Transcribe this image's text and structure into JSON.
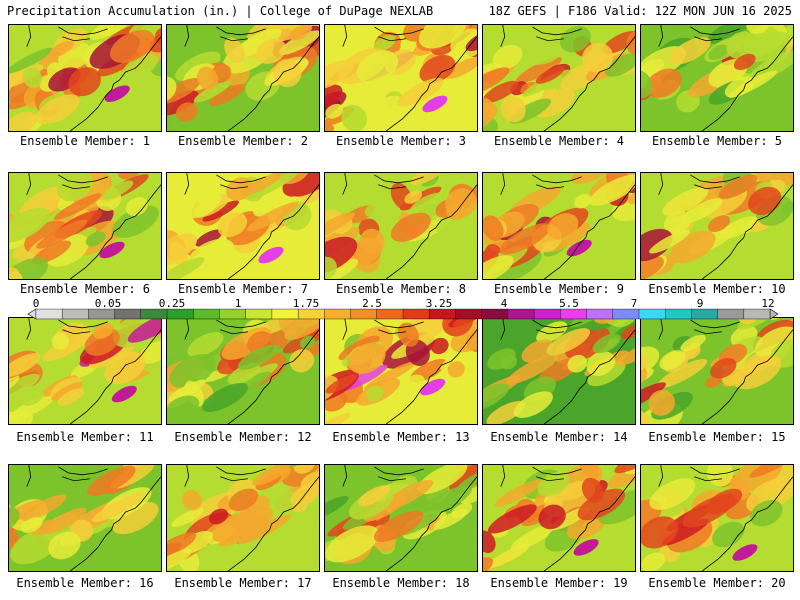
{
  "header": {
    "left": "Precipitation Accumulation (in.) | College of DuPage NEXLAB",
    "right": "18Z GEFS | F186 Valid: 12Z MON JUN 16 2025"
  },
  "members": [
    "Ensemble Member: 1",
    "Ensemble Member: 2",
    "Ensemble Member: 3",
    "Ensemble Member: 4",
    "Ensemble Member: 5",
    "Ensemble Member: 6",
    "Ensemble Member: 7",
    "Ensemble Member: 8",
    "Ensemble Member: 9",
    "Ensemble Member: 10",
    "Ensemble Member: 11",
    "Ensemble Member: 12",
    "Ensemble Member: 13",
    "Ensemble Member: 14",
    "Ensemble Member: 15",
    "Ensemble Member: 16",
    "Ensemble Member: 17",
    "Ensemble Member: 18",
    "Ensemble Member: 19",
    "Ensemble Member: 20"
  ],
  "panel_intensity": [
    0.62,
    0.48,
    0.78,
    0.52,
    0.36,
    0.6,
    0.72,
    0.5,
    0.66,
    0.55,
    0.63,
    0.46,
    0.74,
    0.3,
    0.38,
    0.42,
    0.52,
    0.4,
    0.58,
    0.64
  ],
  "scale": {
    "tick_labels": [
      "0",
      "0.05",
      "0.25",
      "1",
      "1.75",
      "2.5",
      "3.25",
      "4",
      "5.5",
      "7",
      "9",
      "12"
    ],
    "colors": [
      "#e0e0e0",
      "#bdbdbd",
      "#969696",
      "#727272",
      "#3a8a3a",
      "#2f9e2f",
      "#5dbb2d",
      "#94d12f",
      "#c9e634",
      "#f2f23a",
      "#f5d23a",
      "#f6b02e",
      "#f38f27",
      "#ee6820",
      "#e23a1c",
      "#c8161e",
      "#a30f2a",
      "#8a0d40",
      "#b01490",
      "#d21ed0",
      "#ee3cf0",
      "#c070ff",
      "#7a8cff",
      "#3ad8f5",
      "#20c8c8",
      "#2aa8a8",
      "#9a9a9a",
      "#b8b8b8"
    ]
  }
}
